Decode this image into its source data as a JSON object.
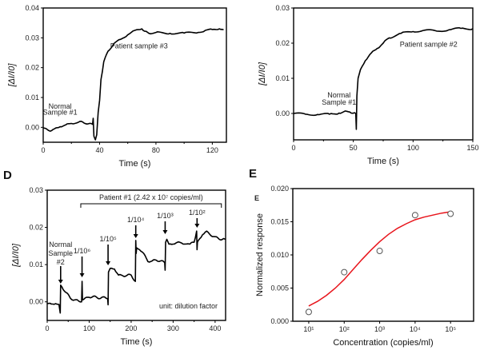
{
  "chart_data": [
    {
      "id": "A",
      "panel_label": "",
      "type": "line",
      "xlabel": "Time (s)",
      "ylabel": "[ΔI/I0]",
      "xlim": [
        0,
        130
      ],
      "ylim": [
        -0.005,
        0.04
      ],
      "xticks": [
        0,
        40,
        80,
        120
      ],
      "yticks": [
        0.0,
        0.01,
        0.02,
        0.03,
        0.04
      ],
      "ytick_labels": [
        "0.00",
        "0.01",
        "0.02",
        "0.03",
        "0.04"
      ],
      "series": [
        {
          "name": "response",
          "x": [
            0,
            3,
            5,
            8,
            12,
            16,
            20,
            25,
            28,
            32,
            35,
            35.5,
            36,
            37,
            38,
            39,
            40,
            41,
            43,
            46,
            50,
            55,
            60,
            65,
            70,
            72,
            75,
            80,
            90,
            100,
            110,
            115,
            120,
            125,
            128
          ],
          "y": [
            -0.0002,
            -0.0008,
            -0.0013,
            -0.0005,
            0.0002,
            0.0008,
            0.0013,
            0.0017,
            0.0018,
            0.0012,
            0.001,
            0.003,
            -0.003,
            -0.0042,
            -0.0025,
            0.005,
            0.009,
            0.016,
            0.022,
            0.0255,
            0.028,
            0.0295,
            0.031,
            0.0325,
            0.033,
            0.0322,
            0.0315,
            0.0318,
            0.0315,
            0.0316,
            0.0318,
            0.0325,
            0.0328,
            0.033,
            0.0327
          ]
        }
      ],
      "annotations": [
        {
          "text": "Normal",
          "x": 12,
          "y": 0.0063
        },
        {
          "text": "Sample #1",
          "x": 12,
          "y": 0.0043
        },
        {
          "text": "Patient sample #3",
          "x": 68,
          "y": 0.0265
        }
      ]
    },
    {
      "id": "B",
      "panel_label": "",
      "type": "line",
      "xlabel": "Time (s)",
      "ylabel": "[ΔI/I0]",
      "xlim": [
        0,
        150
      ],
      "ylim": [
        -0.0075,
        0.03
      ],
      "xticks": [
        0,
        50,
        100,
        150
      ],
      "yticks": [
        0.0,
        0.01,
        0.02,
        0.03
      ],
      "ytick_labels": [
        "0.00",
        "0.01",
        "0.02",
        "0.03"
      ],
      "series": [
        {
          "name": "response",
          "x": [
            0,
            10,
            20,
            30,
            38,
            42,
            47,
            51,
            52,
            52.5,
            53,
            54,
            56,
            60,
            65,
            70,
            75,
            80,
            90,
            100,
            110,
            120,
            130,
            140,
            150
          ],
          "y": [
            0.0,
            -0.0002,
            -0.0003,
            -0.0002,
            0.0001,
            0.0005,
            0.0004,
            0.0002,
            0.0,
            -0.0045,
            0.005,
            0.01,
            0.0125,
            0.015,
            0.0172,
            0.0185,
            0.02,
            0.0215,
            0.0228,
            0.0233,
            0.0237,
            0.0234,
            0.0238,
            0.0242,
            0.0241
          ]
        }
      ],
      "annotations": [
        {
          "text": "Normal",
          "x": 38,
          "y": 0.0045
        },
        {
          "text": "Sample #1",
          "x": 38,
          "y": 0.0025
        },
        {
          "text": "Patient sample #2",
          "x": 113,
          "y": 0.019
        }
      ]
    },
    {
      "id": "D",
      "panel_label": "D",
      "type": "line",
      "xlabel": "Time (s)",
      "ylabel": "[ΔI/I0]",
      "xlim": [
        0,
        425
      ],
      "ylim": [
        -0.005,
        0.03
      ],
      "xticks": [
        0,
        100,
        200,
        300,
        400
      ],
      "yticks": [
        0.0,
        0.01,
        0.02,
        0.03
      ],
      "ytick_labels": [
        "0.00",
        "0.01",
        "0.02",
        "0.03"
      ],
      "series": [
        {
          "name": "response",
          "x": [
            0,
            10,
            20,
            28,
            31,
            32,
            35,
            45,
            55,
            65,
            75,
            82,
            83,
            84,
            90,
            100,
            110,
            120,
            130,
            140,
            144,
            145,
            146,
            150,
            160,
            170,
            180,
            190,
            200,
            210,
            211,
            212,
            213,
            220,
            230,
            240,
            250,
            260,
            270,
            280,
            281,
            282,
            285,
            290,
            300,
            310,
            320,
            340,
            350,
            356,
            357,
            358,
            360,
            370,
            380,
            390,
            400,
            410,
            420,
            425
          ],
          "y": [
            -0.0005,
            -0.0006,
            -0.0005,
            -0.0007,
            -0.003,
            0.0045,
            0.004,
            0.0025,
            0.001,
            0.0005,
            0.0002,
            0.0,
            0.0055,
            0.0005,
            0.001,
            0.0012,
            0.0015,
            0.001,
            0.0012,
            0.001,
            0.0008,
            -0.0008,
            0.008,
            0.009,
            0.0088,
            0.0072,
            0.007,
            0.0071,
            0.0072,
            0.0055,
            0.0165,
            0.013,
            0.0145,
            0.014,
            0.013,
            0.0108,
            0.011,
            0.0112,
            0.011,
            0.0105,
            0.0085,
            0.016,
            0.0168,
            0.0155,
            0.0155,
            0.016,
            0.0158,
            0.0155,
            0.016,
            0.019,
            0.014,
            0.016,
            0.0165,
            0.018,
            0.019,
            0.0178,
            0.0175,
            0.0168,
            0.017,
            0.0168
          ]
        }
      ],
      "bracket": {
        "text": "Patient #1 (2.42 x 10⁷ copies/ml)",
        "x_start": 80,
        "x_end": 415
      },
      "arrows": [
        {
          "label": "#2",
          "x": 32,
          "label_lines": [
            "Normal",
            "Sample",
            "#2"
          ]
        },
        {
          "label": "1/10⁶",
          "x": 83
        },
        {
          "label": "1/10⁵",
          "x": 145
        },
        {
          "label": "1/10⁴",
          "x": 211
        },
        {
          "label": "1/10³",
          "x": 281
        },
        {
          "label": "1/10²",
          "x": 357
        }
      ],
      "note": "unit: dilution factor"
    },
    {
      "id": "E",
      "panel_label": "E",
      "type": "scatter",
      "inner_label": "E",
      "xlabel": "Concentration (copies/ml)",
      "ylabel": "Normalized response",
      "xscale": "log",
      "xlim_log10": [
        0.55,
        5.65
      ],
      "ylim": [
        0.0,
        0.02
      ],
      "xticks_log10": [
        1,
        2,
        3,
        4,
        5
      ],
      "xtick_labels": [
        "10¹",
        "10²",
        "10³",
        "10⁴",
        "10⁵"
      ],
      "yticks": [
        0.0,
        0.005,
        0.01,
        0.015,
        0.02
      ],
      "ytick_labels": [
        "0.000",
        "0.005",
        "0.010",
        "0.015",
        "0.020"
      ],
      "points": {
        "x": [
          10,
          100,
          1000,
          10000,
          100000
        ],
        "y": [
          0.0014,
          0.0074,
          0.0106,
          0.016,
          0.0162
        ]
      },
      "fit": {
        "color": "#e8141b",
        "x_log10": [
          1.0,
          1.25,
          1.5,
          1.75,
          2.0,
          2.25,
          2.5,
          2.75,
          3.0,
          3.25,
          3.5,
          3.75,
          4.0,
          4.25,
          4.5,
          4.75,
          5.0
        ],
        "y": [
          0.0023,
          0.003,
          0.0039,
          0.005,
          0.0063,
          0.0078,
          0.0093,
          0.0107,
          0.012,
          0.0131,
          0.014,
          0.0147,
          0.0153,
          0.0157,
          0.016,
          0.0163,
          0.0165
        ]
      }
    }
  ]
}
